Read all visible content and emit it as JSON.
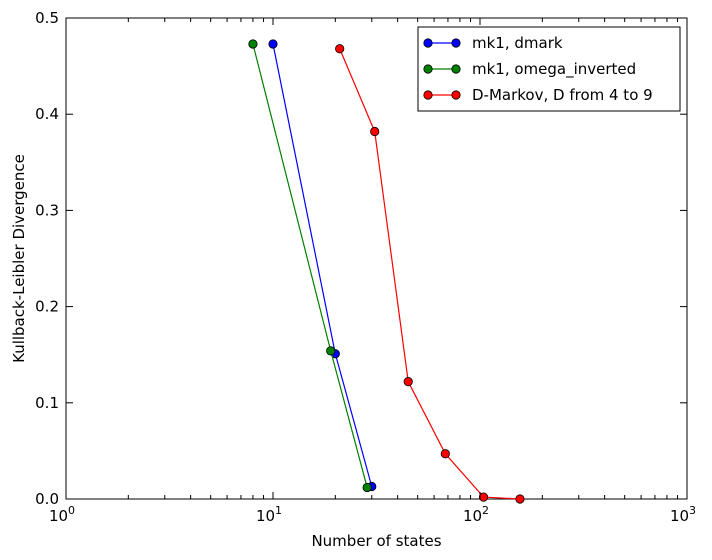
{
  "chart_data": {
    "type": "line",
    "xlabel": "Number of states",
    "ylabel": "Kullback-Leibler Divergence",
    "xscale": "log",
    "xlim": [
      1,
      1000
    ],
    "ylim": [
      0,
      0.5
    ],
    "x_ticks": [
      {
        "value": 1,
        "base": "10",
        "exp": "0"
      },
      {
        "value": 10,
        "base": "10",
        "exp": "1"
      },
      {
        "value": 100,
        "base": "10",
        "exp": "2"
      },
      {
        "value": 1000,
        "base": "10",
        "exp": "3"
      }
    ],
    "y_ticks": [
      {
        "value": 0.0,
        "label": "0.0"
      },
      {
        "value": 0.1,
        "label": "0.1"
      },
      {
        "value": 0.2,
        "label": "0.2"
      },
      {
        "value": 0.3,
        "label": "0.3"
      },
      {
        "value": 0.4,
        "label": "0.4"
      },
      {
        "value": 0.5,
        "label": "0.5"
      }
    ],
    "grid": false,
    "legend_position": "top-right",
    "series": [
      {
        "name": "mk1, dmark",
        "color": "#0000ff",
        "points": [
          [
            10,
            0.473
          ],
          [
            20,
            0.151
          ],
          [
            30,
            0.013
          ]
        ]
      },
      {
        "name": "mk1, omega_inverted",
        "color": "#008000",
        "points": [
          [
            8,
            0.473
          ],
          [
            19,
            0.154
          ],
          [
            28.5,
            0.012
          ]
        ]
      },
      {
        "name": "D-Markov, D from 4 to 9",
        "color": "#ff0000",
        "points": [
          [
            21,
            0.468
          ],
          [
            31,
            0.382
          ],
          [
            45,
            0.122
          ],
          [
            68,
            0.047
          ],
          [
            104,
            0.002
          ],
          [
            156,
            0.0
          ]
        ]
      }
    ]
  }
}
